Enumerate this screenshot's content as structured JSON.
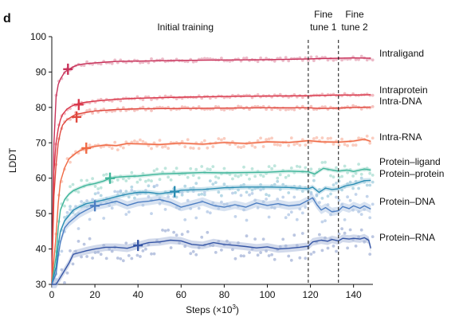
{
  "panel_label": "d",
  "chart_data": {
    "type": "line",
    "title": "",
    "xlabel": "Steps (×10",
    "xlabel_sup": "3",
    "xlabel_close": ")",
    "ylabel": "LDDT",
    "xlim": [
      0,
      149
    ],
    "ylim": [
      30,
      100
    ],
    "xticks": [
      0,
      20,
      40,
      60,
      80,
      100,
      120,
      140
    ],
    "yticks": [
      30,
      40,
      50,
      60,
      70,
      80,
      90,
      100
    ],
    "grid": false,
    "legend": "direct labels at right",
    "phase_boundaries": [
      119,
      133
    ],
    "phase_labels": [
      {
        "lines": [
          "Initial training"
        ],
        "x_center": 62
      },
      {
        "lines": [
          "Fine",
          "tune 1"
        ],
        "x_center": 126
      },
      {
        "lines": [
          "Fine",
          "tune 2"
        ],
        "x_center": 140.5
      }
    ],
    "series": [
      {
        "name": "Intraligand",
        "color": "#c8325a",
        "x": [
          0,
          1,
          2,
          3,
          4,
          5,
          6,
          8,
          10,
          12,
          15,
          20,
          30,
          40,
          60,
          80,
          100,
          119,
          125,
          133,
          140,
          148
        ],
        "values": [
          30,
          70,
          83,
          86.5,
          88,
          89,
          90,
          90.8,
          91.5,
          92,
          92.3,
          92.6,
          93,
          93.1,
          93.3,
          93.4,
          93.5,
          93.7,
          93.8,
          93.9,
          94,
          93.9
        ],
        "marker": {
          "x": 7.5,
          "y": 90.8
        }
      },
      {
        "name": "Intraprotein",
        "color": "#d8364a",
        "x": [
          0,
          1,
          2,
          3,
          4,
          5,
          7,
          9,
          12,
          15,
          20,
          30,
          40,
          60,
          80,
          100,
          119,
          125,
          133,
          140,
          148
        ],
        "values": [
          30,
          62,
          70,
          74,
          76.5,
          78,
          79.5,
          80.3,
          81,
          81.4,
          81.8,
          82.3,
          82.6,
          82.9,
          83.1,
          83.2,
          83.3,
          83.4,
          83.5,
          83.5,
          83.6
        ],
        "marker": {
          "x": 12.5,
          "y": 80.8
        }
      },
      {
        "name": "Intra-DNA",
        "color": "#e0483e",
        "x": [
          0,
          1,
          2,
          3,
          4,
          5,
          7,
          9,
          11,
          15,
          20,
          30,
          40,
          60,
          80,
          100,
          119,
          125,
          133,
          140,
          148
        ],
        "values": [
          30,
          55,
          64,
          70,
          73,
          75,
          76.5,
          77.3,
          78,
          78.5,
          79,
          79.4,
          79.6,
          79.7,
          79.8,
          79.9,
          79.9,
          79.7,
          79.8,
          80,
          80.1
        ],
        "marker": {
          "x": 11.5,
          "y": 77.3
        }
      },
      {
        "name": "Intra-RNA",
        "color": "#f06a45",
        "x": [
          0,
          2,
          3,
          4,
          6,
          8,
          11,
          13,
          16,
          20,
          25,
          30,
          35,
          40,
          50,
          60,
          70,
          80,
          90,
          100,
          110,
          119,
          125,
          133,
          140,
          145,
          148
        ],
        "values": [
          30,
          44,
          53,
          59,
          63,
          65.5,
          67,
          67.8,
          68.5,
          69,
          69.4,
          69.2,
          69.8,
          69.7,
          69.5,
          69.9,
          69.6,
          70.1,
          69.8,
          70.3,
          70.1,
          70.6,
          70.3,
          70.2,
          70.5,
          71,
          70.4
        ],
        "marker": {
          "x": 16,
          "y": 68.5
        }
      },
      {
        "name": "Protein–ligand",
        "color": "#3fb59a",
        "x": [
          0,
          2,
          3,
          4,
          6,
          8,
          10,
          13,
          16,
          20,
          24,
          27,
          30,
          35,
          40,
          50,
          60,
          70,
          80,
          90,
          100,
          110,
          119,
          122,
          126,
          130,
          133,
          137,
          140,
          145,
          148
        ],
        "values": [
          30,
          38,
          46,
          51,
          54,
          55.5,
          56.5,
          57.3,
          58,
          58.5,
          59.2,
          60,
          60.3,
          60.5,
          60.6,
          61.2,
          61.4,
          61.6,
          61.5,
          61.6,
          61.7,
          62,
          61.8,
          61.2,
          62.8,
          62.3,
          62,
          62.3,
          61.9,
          62.6,
          62.3
        ],
        "marker": {
          "x": 27,
          "y": 60
        }
      },
      {
        "name": "Protein–protein",
        "color": "#2b8db3",
        "x": [
          0,
          2,
          3,
          4,
          6,
          8,
          10,
          13,
          16,
          20,
          25,
          30,
          35,
          40,
          45,
          50,
          57,
          60,
          70,
          80,
          90,
          100,
          110,
          119,
          121,
          124,
          127,
          130,
          133,
          136,
          140,
          145,
          148
        ],
        "values": [
          30,
          35,
          41,
          45,
          48,
          49.5,
          51,
          52,
          52.8,
          53.3,
          54,
          54.8,
          55.5,
          56,
          56,
          55.6,
          56.2,
          56.6,
          56.8,
          57.3,
          57.5,
          57.5,
          57.4,
          57,
          57.5,
          56,
          57.2,
          56.8,
          57,
          57.8,
          58.3,
          59.3,
          59.4
        ],
        "marker": {
          "x": 57,
          "y": 56.2
        }
      },
      {
        "name": "Protein–DNA",
        "color": "#4d7ec2",
        "x": [
          0,
          2,
          3,
          4,
          6,
          8,
          10,
          13,
          16,
          20,
          25,
          30,
          35,
          40,
          45,
          50,
          55,
          60,
          65,
          70,
          75,
          80,
          85,
          90,
          95,
          100,
          105,
          110,
          115,
          119,
          121,
          123,
          125,
          127,
          130,
          133,
          135,
          138,
          140,
          143,
          145,
          148
        ],
        "values": [
          30,
          33,
          38,
          42,
          46,
          47.5,
          48.5,
          50,
          51,
          52.2,
          52.7,
          53.5,
          52.3,
          53.2,
          53.5,
          54,
          53.2,
          51.8,
          52.6,
          53.4,
          52.3,
          51.8,
          52.5,
          51.8,
          53,
          52.3,
          52.8,
          52.2,
          52.5,
          53.8,
          54.5,
          52.5,
          51,
          51.7,
          50.5,
          50.8,
          52,
          51.4,
          52.2,
          51.5,
          52.2,
          51.3
        ],
        "marker": {
          "x": 20,
          "y": 52.2
        }
      },
      {
        "name": "Protein–RNA",
        "color": "#3555a5",
        "x": [
          0,
          2,
          4,
          6,
          8,
          10,
          13,
          16,
          20,
          25,
          30,
          35,
          40,
          45,
          50,
          55,
          60,
          65,
          70,
          75,
          80,
          85,
          90,
          95,
          100,
          105,
          110,
          115,
          119,
          121,
          125,
          128,
          130,
          133,
          135,
          138,
          140,
          143,
          145,
          147,
          148
        ],
        "values": [
          30,
          30,
          32,
          34,
          36,
          38.5,
          39,
          39.5,
          40,
          40.5,
          40.5,
          40.2,
          41,
          41.8,
          42,
          42.5,
          42.3,
          41.3,
          41,
          41.8,
          41.3,
          41,
          40.7,
          40.3,
          40.6,
          40,
          40.2,
          40.5,
          40.8,
          42,
          42.5,
          42.2,
          42.7,
          42.3,
          43,
          42.8,
          43,
          42.8,
          43.2,
          42.5,
          40.2
        ],
        "marker": {
          "x": 40,
          "y": 41
        }
      }
    ]
  }
}
